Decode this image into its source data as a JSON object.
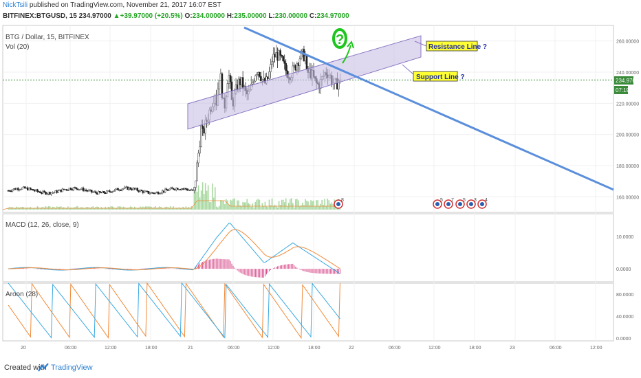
{
  "header": {
    "author": "NickTsili",
    "published": " published on TradingView.com, November 21, 2017 16:07 EST",
    "symbol": "BITFINEX:BTGUSD, 15",
    "price": "234.97000",
    "change": "+39.97000 (+20.5%)",
    "open_label": "O:",
    "open": "234.00000",
    "high_label": "H:",
    "high": "235.00000",
    "low_label": "L:",
    "low": "230.00000",
    "close_label": "C:",
    "close": "234.97000"
  },
  "footer": {
    "created_with": "Created with",
    "brand": "TradingView"
  },
  "colors": {
    "up": "#24a524",
    "down": "#c0392b",
    "trendline": "#5b8fdc",
    "channel_fill": "#c9c0e6",
    "channel_stroke": "#8a77c4",
    "callout_fill": "#ffff33",
    "macd_line": "#3aa8e0",
    "signal_line": "#f08a3a",
    "histogram": "#d64a8a",
    "aroon_up": "#f08a3a",
    "aroon_down": "#3aa8e0",
    "volume": "#a8d8a0"
  },
  "chart_data": [
    {
      "type": "candlestick",
      "title": "BTG / Dollar, 15, BITFINEX",
      "subtitle": "Vol (20)",
      "x_tick_labels": [
        "20",
        "06:00",
        "12:00",
        "18:00",
        "21",
        "06:00",
        "12:00",
        "18:00",
        "22",
        "06:00",
        "12:00",
        "18:00",
        "23",
        "06:00",
        "12:00"
      ],
      "y_tick_labels": [
        "260.00000",
        "240.00000",
        "220.00000",
        "200.00000",
        "180.00000",
        "160.00000"
      ],
      "ylim": [
        150,
        270
      ],
      "current_price": "234.97000",
      "countdown": "07:19",
      "annotations": {
        "resistance": "Resistance Line ?",
        "support": "Support Line ?",
        "question": "?"
      },
      "event_counts": [
        "8",
        "5",
        "7",
        "5",
        "3",
        "4"
      ],
      "series_summary": {
        "pre_breakout_range": [
          162,
          166
        ],
        "breakout_time": "21 00:00",
        "breakout_high": 262,
        "last_close": 234.97
      }
    },
    {
      "type": "line",
      "title": "MACD (12, 26, close, 9)",
      "y_tick_labels": [
        "10.0000",
        "0.0000"
      ],
      "ylim": [
        -4,
        17
      ],
      "series": [
        {
          "name": "MACD"
        },
        {
          "name": "Signal"
        },
        {
          "name": "Histogram"
        }
      ]
    },
    {
      "type": "line",
      "title": "Aroon (28)",
      "y_tick_labels": [
        "80.0000",
        "40.0000",
        "0.0000"
      ],
      "ylim": [
        -5,
        100
      ],
      "series": [
        {
          "name": "Aroon Up"
        },
        {
          "name": "Aroon Down"
        }
      ]
    }
  ]
}
